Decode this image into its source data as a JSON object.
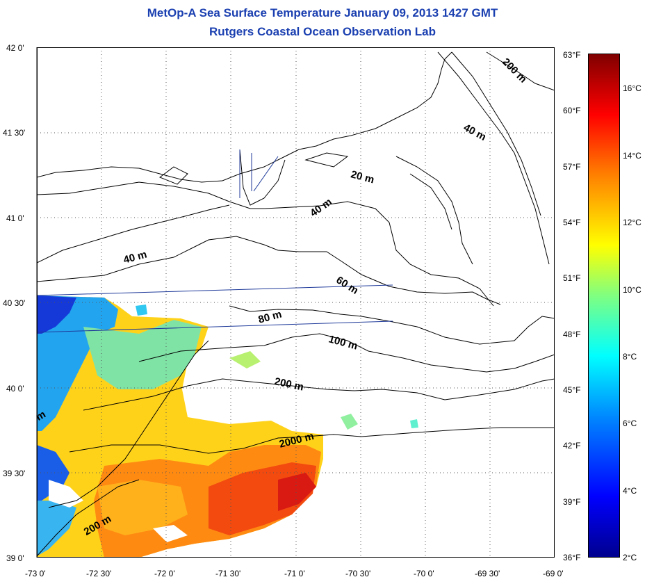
{
  "title_line1": "MetOp-A Sea Surface Temperature January 09, 2013 1427 GMT",
  "title_line2": "Rutgers Coastal Ocean Observation Lab",
  "lat_labels": [
    "42 0'",
    "41 30'",
    "41 0'",
    "40 30'",
    "40 0'",
    "39 30'",
    "39 0'"
  ],
  "lon_labels": [
    "-73 0'",
    "-72 30'",
    "-72 0'",
    "-71 30'",
    "-71 0'",
    "-70 30'",
    "-70 0'",
    "-69 30'",
    "-69 0'"
  ],
  "fahrenheit_labels": [
    "63°F",
    "60°F",
    "57°F",
    "54°F",
    "51°F",
    "48°F",
    "45°F",
    "42°F",
    "39°F",
    "36°F"
  ],
  "celsius_labels": [
    "16°C",
    "14°C",
    "12°C",
    "10°C",
    "8°C",
    "6°C",
    "4°C",
    "2°C"
  ],
  "contour_labels": [
    "200 m",
    "40 m",
    "20 m",
    "40 m",
    "40 m",
    "60 m",
    "80 m",
    "100 m",
    "200 m",
    "2000 m",
    "200 m",
    "m"
  ],
  "colors": {
    "title": "#1a3fb0",
    "land_line": "#000000",
    "track_line": "#1f3a9a"
  }
}
